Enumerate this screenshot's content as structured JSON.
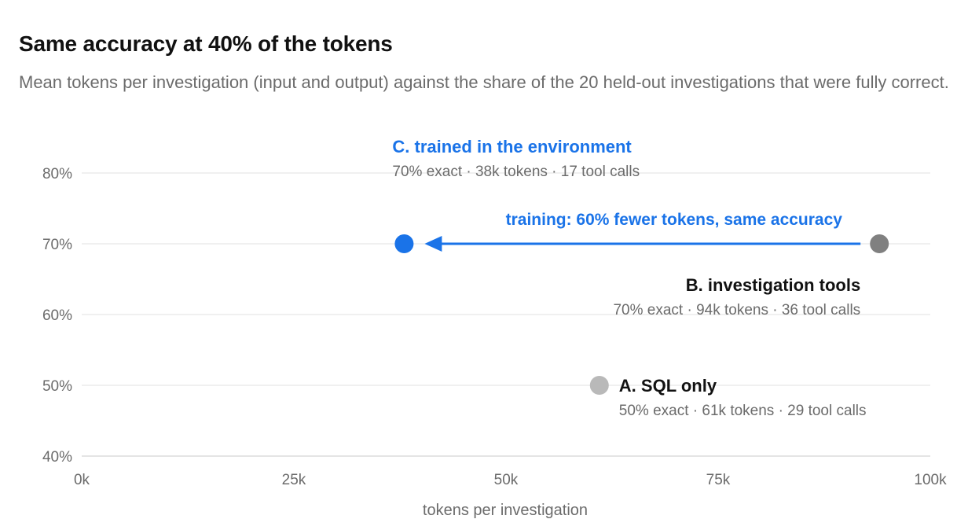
{
  "header": {
    "title": "Same accuracy at 40% of the tokens",
    "subtitle": "Mean tokens per investigation (input and output) against the share of the 20 held-out investigations that were fully correct."
  },
  "chart_data": {
    "type": "scatter",
    "xlabel": "tokens per investigation",
    "ylabel": "",
    "xlim": [
      0,
      100000
    ],
    "ylim": [
      40,
      80
    ],
    "x_ticks": [
      {
        "value": 0,
        "label": "0k"
      },
      {
        "value": 25000,
        "label": "25k"
      },
      {
        "value": 50000,
        "label": "50k"
      },
      {
        "value": 75000,
        "label": "75k"
      },
      {
        "value": 100000,
        "label": "100k"
      }
    ],
    "y_ticks": [
      {
        "value": 40,
        "label": "40%"
      },
      {
        "value": 50,
        "label": "50%"
      },
      {
        "value": 60,
        "label": "60%"
      },
      {
        "value": 70,
        "label": "70%"
      },
      {
        "value": 80,
        "label": "80%"
      }
    ],
    "grid": "horizontal",
    "points": [
      {
        "id": "A",
        "name": "A. SQL only",
        "detail": "50% exact · 61k tokens · 29 tool calls",
        "x": 61000,
        "y": 50,
        "color": "#b9b9b9",
        "name_color": "#111111",
        "label_side": "right"
      },
      {
        "id": "B",
        "name": "B. investigation tools",
        "detail": "70% exact · 94k tokens · 36 tool calls",
        "x": 94000,
        "y": 70,
        "color": "#808080",
        "name_color": "#111111",
        "label_side": "below-left"
      },
      {
        "id": "C",
        "name": "C. trained in the environment",
        "detail": "70% exact · 38k tokens · 17 tool calls",
        "x": 38000,
        "y": 70,
        "color": "#1a73e8",
        "name_color": "#1a73e8",
        "label_side": "above"
      }
    ],
    "annotations": [
      {
        "type": "arrow",
        "from": "B",
        "to": "C",
        "text": "training: 60% fewer tokens, same accuracy",
        "color": "#1a73e8"
      }
    ]
  }
}
